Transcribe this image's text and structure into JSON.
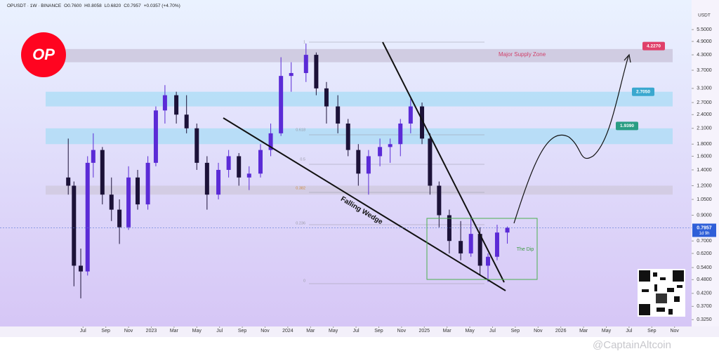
{
  "chart_data": {
    "type": "candlestick",
    "header": [
      "OPUSDT · 1W · BINANCE",
      "O0.7600",
      "H0.8058",
      "L0.6820",
      "C0.7957",
      "+0.0357 (+4.70%)"
    ],
    "logo": "OP",
    "currency": "USDT",
    "log_scale": true,
    "xlim": [
      -7.3,
      53.5
    ],
    "ylim": [
      0.304,
      7.34
    ],
    "xticks": [
      {
        "value": 0,
        "label": "Jul"
      },
      {
        "value": 2,
        "label": "Sep"
      },
      {
        "value": 4,
        "label": "Nov"
      },
      {
        "value": 6,
        "label": "2023"
      },
      {
        "value": 8,
        "label": "Mar"
      },
      {
        "value": 10,
        "label": "May"
      },
      {
        "value": 12,
        "label": "Jul"
      },
      {
        "value": 14,
        "label": "Sep"
      },
      {
        "value": 16,
        "label": "Nov"
      },
      {
        "value": 18,
        "label": "2024"
      },
      {
        "value": 20,
        "label": "Mar"
      },
      {
        "value": 22,
        "label": "May"
      },
      {
        "value": 24,
        "label": "Jul"
      },
      {
        "value": 26,
        "label": "Sep"
      },
      {
        "value": 28,
        "label": "Nov"
      },
      {
        "value": 30,
        "label": "2025"
      },
      {
        "value": 32,
        "label": "Mar"
      },
      {
        "value": 34,
        "label": "May"
      },
      {
        "value": 36,
        "label": "Jul"
      },
      {
        "value": 38,
        "label": "Sep"
      },
      {
        "value": 40,
        "label": "Nov"
      },
      {
        "value": 42,
        "label": "2026"
      },
      {
        "value": 44,
        "label": "Mar"
      },
      {
        "value": 46,
        "label": "May"
      },
      {
        "value": 48,
        "label": "Jul"
      },
      {
        "value": 50,
        "label": "Sep"
      },
      {
        "value": 52,
        "label": "Nov"
      }
    ],
    "yticks": [
      {
        "value": 5.5,
        "label": "5.5000"
      },
      {
        "value": 4.9,
        "label": "4.9000"
      },
      {
        "value": 4.3,
        "label": "4.3000"
      },
      {
        "value": 3.7,
        "label": "3.7000"
      },
      {
        "value": 3.1,
        "label": "3.1000"
      },
      {
        "value": 2.7,
        "label": "2.7000"
      },
      {
        "value": 2.4,
        "label": "2.4000"
      },
      {
        "value": 2.1,
        "label": "2.1000"
      },
      {
        "value": 1.8,
        "label": "1.8000"
      },
      {
        "value": 1.6,
        "label": "1.6000"
      },
      {
        "value": 1.4,
        "label": "1.4000"
      },
      {
        "value": 1.2,
        "label": "1.2000"
      },
      {
        "value": 1.05,
        "label": "1.0500"
      },
      {
        "value": 0.9,
        "label": "0.9000"
      },
      {
        "value": 0.7,
        "label": "0.7000"
      },
      {
        "value": 0.62,
        "label": "0.6200"
      },
      {
        "value": 0.54,
        "label": "0.5400"
      },
      {
        "value": 0.48,
        "label": "0.4800"
      },
      {
        "value": 0.42,
        "label": "0.4200"
      },
      {
        "value": 0.37,
        "label": "0.3700"
      },
      {
        "value": 0.325,
        "label": "0.3250"
      }
    ],
    "current_price": 0.7957,
    "countdown": "1d 9h",
    "up_color": "#5b2bd6",
    "down_color": "#1c1238",
    "x": [
      -1.3,
      -0.8,
      -0.2,
      0.4,
      0.9,
      1.7,
      2.5,
      3.2,
      4.0,
      4.8,
      5.7,
      6.4,
      7.2,
      8.2,
      9.1,
      10.0,
      10.9,
      11.9,
      12.8,
      13.7,
      14.6,
      15.6,
      16.5,
      17.4,
      18.3,
      19.6,
      20.5,
      21.4,
      22.4,
      23.3,
      24.2,
      25.1,
      26.1,
      27.0,
      27.9,
      28.8,
      29.8,
      30.5,
      31.3,
      32.2,
      33.2,
      34.1,
      34.9,
      35.6,
      36.4,
      37.3
    ],
    "open": [
      1.3,
      1.2,
      0.55,
      0.52,
      1.5,
      1.7,
      1.1,
      0.95,
      0.8,
      1.3,
      1.0,
      1.5,
      2.5,
      2.9,
      2.4,
      2.1,
      1.5,
      1.1,
      1.4,
      1.6,
      1.3,
      1.35,
      1.7,
      2.0,
      3.5,
      3.6,
      4.3,
      3.1,
      2.6,
      2.2,
      1.7,
      1.35,
      1.6,
      1.75,
      1.8,
      2.2,
      2.6,
      1.9,
      1.2,
      0.9,
      0.7,
      0.62,
      0.75,
      0.55,
      0.6,
      0.76
    ],
    "high": [
      1.9,
      1.25,
      0.65,
      1.6,
      2.0,
      1.75,
      1.3,
      1.05,
      1.45,
      1.4,
      1.6,
      2.6,
      3.2,
      3.0,
      2.9,
      2.2,
      1.6,
      1.5,
      1.7,
      1.65,
      1.45,
      1.8,
      2.2,
      4.2,
      4.0,
      4.8,
      4.4,
      3.3,
      2.9,
      2.3,
      1.8,
      1.7,
      1.9,
      1.9,
      2.3,
      2.8,
      2.7,
      2.0,
      1.25,
      0.95,
      0.85,
      0.9,
      0.8,
      0.62,
      0.82,
      0.806
    ],
    "low": [
      1.1,
      0.45,
      0.4,
      0.5,
      1.3,
      1.0,
      0.85,
      0.68,
      0.78,
      0.95,
      0.95,
      1.45,
      2.2,
      2.2,
      2.0,
      1.4,
      0.95,
      1.05,
      1.3,
      1.2,
      1.15,
      1.3,
      1.6,
      1.95,
      3.0,
      3.3,
      2.9,
      2.2,
      2.0,
      1.6,
      1.2,
      1.1,
      1.45,
      1.5,
      1.6,
      2.0,
      1.8,
      1.1,
      0.8,
      0.62,
      0.58,
      0.6,
      0.5,
      0.47,
      0.58,
      0.682
    ],
    "close": [
      1.2,
      0.55,
      0.52,
      1.5,
      1.7,
      1.1,
      0.95,
      0.8,
      1.3,
      1.0,
      1.5,
      2.5,
      2.9,
      2.4,
      2.1,
      1.5,
      1.1,
      1.4,
      1.6,
      1.3,
      1.35,
      1.7,
      2.0,
      3.5,
      3.6,
      4.3,
      3.1,
      2.6,
      2.2,
      1.7,
      1.35,
      1.6,
      1.75,
      1.8,
      2.2,
      2.6,
      1.9,
      1.2,
      0.9,
      0.7,
      0.62,
      0.75,
      0.55,
      0.6,
      0.76,
      0.796
    ],
    "zones": [
      {
        "low": 4.0,
        "high": 4.55,
        "color": "#c8c2d8",
        "label": "Major Supply Zone"
      },
      {
        "low": 2.6,
        "high": 3.0,
        "color": "#a9dcf5"
      },
      {
        "low": 1.8,
        "high": 2.1,
        "color": "#a9dcf5"
      },
      {
        "low": 1.1,
        "high": 1.2,
        "color": "#cfc8dc"
      }
    ],
    "targets": [
      {
        "value": 4.227,
        "label": "4.2270",
        "color": "#e0406a"
      },
      {
        "value": 2.705,
        "label": "2.7050",
        "color": "#3aa8cf"
      },
      {
        "value": 1.939,
        "label": "1.9390",
        "color": "#2a9d84"
      }
    ],
    "fib_labels": [
      "1",
      "0.618",
      "0.5",
      "0.382",
      "0.236",
      "0"
    ],
    "pattern_label": "Falling Wedge",
    "dip_label": "The Dip",
    "watermark": "@CaptainAltcoin"
  }
}
